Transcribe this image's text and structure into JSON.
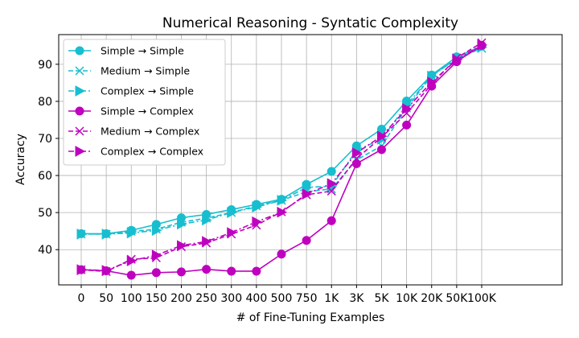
{
  "chart_data": {
    "type": "line",
    "title": "Numerical Reasoning - Syntatic Complexity",
    "xlabel": "# of Fine-Tuning Examples",
    "ylabel": "Accuracy",
    "categories": [
      "0",
      "50",
      "100",
      "150",
      "200",
      "250",
      "300",
      "400",
      "500",
      "750",
      "1K",
      "3K",
      "5K",
      "10K",
      "20K",
      "50K",
      "100K"
    ],
    "ylim": [
      30.5,
      98
    ],
    "yticks": [
      40,
      50,
      60,
      70,
      80,
      90
    ],
    "grid": true,
    "legend_position": "top-left",
    "series": [
      {
        "name": "Simple → Simple",
        "color": "#17becf",
        "linestyle": "solid",
        "marker": "circle",
        "values": [
          44.3,
          44.3,
          45.2,
          46.8,
          48.6,
          49.5,
          50.8,
          52.2,
          53.6,
          57.6,
          61.1,
          68.0,
          72.5,
          80.1,
          87.1,
          92.0,
          94.9
        ]
      },
      {
        "name": "Medium → Simple",
        "color": "#17becf",
        "linestyle": "dashed",
        "marker": "x",
        "values": [
          44.2,
          44.2,
          44.9,
          45.5,
          47.4,
          48.5,
          50.0,
          51.8,
          53.3,
          55.6,
          56.4,
          64.2,
          68.0,
          78.2,
          86.9,
          91.5,
          94.3
        ]
      },
      {
        "name": "Complex → Simple",
        "color": "#17becf",
        "linestyle": "dashdot",
        "marker": "triangle-right",
        "values": [
          44.2,
          44.2,
          44.5,
          45.2,
          46.9,
          48.0,
          50.0,
          51.5,
          53.3,
          56.8,
          57.1,
          66.8,
          69.8,
          79.0,
          86.8,
          91.5,
          94.6
        ]
      },
      {
        "name": "Simple → Complex",
        "color": "#bf00bf",
        "linestyle": "solid",
        "marker": "circle",
        "values": [
          34.6,
          34.3,
          33.1,
          33.8,
          34.0,
          34.7,
          34.2,
          34.2,
          38.8,
          42.5,
          47.8,
          63.2,
          67.0,
          73.6,
          84.1,
          90.7,
          95.1
        ]
      },
      {
        "name": "Medium → Complex",
        "color": "#bf00bf",
        "linestyle": "dashed",
        "marker": "x",
        "values": [
          34.6,
          34.1,
          37.4,
          37.8,
          40.8,
          41.8,
          44.2,
          46.6,
          50.2,
          54.8,
          55.8,
          64.6,
          70.3,
          76.8,
          84.6,
          91.7,
          95.8
        ]
      },
      {
        "name": "Complex → Complex",
        "color": "#bf00bf",
        "linestyle": "dashdot",
        "marker": "triangle-right",
        "values": [
          34.6,
          34.4,
          37.0,
          38.5,
          41.1,
          42.2,
          44.6,
          47.5,
          50.1,
          55.0,
          57.8,
          66.1,
          70.6,
          78.0,
          85.2,
          91.2,
          95.2
        ]
      }
    ]
  }
}
